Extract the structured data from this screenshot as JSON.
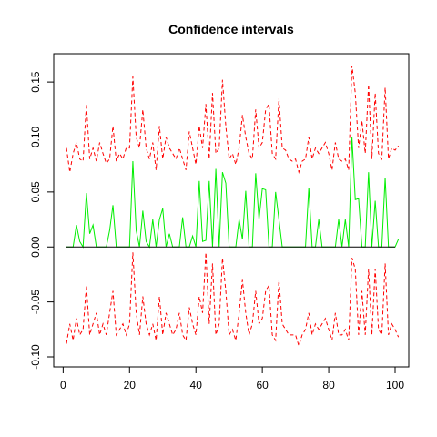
{
  "chart_data": {
    "type": "line",
    "title": "Confidence intervals",
    "xlabel": "",
    "ylabel": "",
    "xlim": [
      1,
      100
    ],
    "ylim": [
      -0.1,
      0.165
    ],
    "x_ticks": [
      0,
      20,
      40,
      60,
      80,
      100
    ],
    "y_ticks": [
      -0.1,
      -0.05,
      0.0,
      0.05,
      0.1,
      0.15
    ],
    "x_tick_labels": [
      "0",
      "20",
      "40",
      "60",
      "80",
      "100"
    ],
    "y_tick_labels": [
      "-0.10",
      "-0.05",
      "0.00",
      "0.05",
      "0.10",
      "0.15"
    ],
    "grid": false,
    "reference_line": {
      "y": 0,
      "color": "#000000"
    },
    "series": [
      {
        "color": "#ff0000",
        "dash": "dashed",
        "values": [
          0.09,
          0.068,
          0.085,
          0.095,
          0.08,
          0.078,
          0.13,
          0.08,
          0.09,
          0.078,
          0.095,
          0.085,
          0.076,
          0.08,
          0.11,
          0.078,
          0.085,
          0.08,
          0.09,
          0.09,
          0.155,
          0.1,
          0.09,
          0.125,
          0.09,
          0.08,
          0.095,
          0.07,
          0.11,
          0.08,
          0.1,
          0.09,
          0.085,
          0.08,
          0.09,
          0.08,
          0.07,
          0.105,
          0.09,
          0.075,
          0.11,
          0.09,
          0.13,
          0.08,
          0.14,
          0.085,
          0.09,
          0.152,
          0.11,
          0.08,
          0.085,
          0.075,
          0.09,
          0.12,
          0.1,
          0.085,
          0.08,
          0.125,
          0.09,
          0.095,
          0.125,
          0.13,
          0.085,
          0.08,
          0.135,
          0.09,
          0.088,
          0.08,
          0.078,
          0.08,
          0.068,
          0.078,
          0.08,
          0.1,
          0.08,
          0.09,
          0.085,
          0.09,
          0.095,
          0.085,
          0.07,
          0.095,
          0.08,
          0.078,
          0.08,
          0.07,
          0.165,
          0.14,
          0.09,
          0.115,
          0.085,
          0.148,
          0.08,
          0.14,
          0.085,
          0.08,
          0.145,
          0.08,
          0.09,
          0.088,
          0.092
        ]
      },
      {
        "color": "#ff0000",
        "dash": "dashed",
        "values": [
          -0.088,
          -0.07,
          -0.085,
          -0.065,
          -0.08,
          -0.075,
          -0.035,
          -0.08,
          -0.07,
          -0.06,
          -0.08,
          -0.07,
          -0.08,
          -0.06,
          -0.04,
          -0.08,
          -0.075,
          -0.07,
          -0.08,
          -0.07,
          -0.005,
          -0.06,
          -0.08,
          -0.045,
          -0.07,
          -0.08,
          -0.07,
          -0.085,
          -0.045,
          -0.08,
          -0.06,
          -0.07,
          -0.08,
          -0.075,
          -0.06,
          -0.08,
          -0.085,
          -0.055,
          -0.07,
          -0.08,
          -0.045,
          -0.06,
          -0.005,
          -0.07,
          -0.015,
          -0.08,
          -0.07,
          -0.01,
          -0.04,
          -0.08,
          -0.075,
          -0.085,
          -0.06,
          -0.03,
          -0.06,
          -0.08,
          -0.07,
          -0.04,
          -0.07,
          -0.065,
          -0.04,
          -0.035,
          -0.08,
          -0.085,
          -0.03,
          -0.07,
          -0.075,
          -0.08,
          -0.08,
          -0.08,
          -0.09,
          -0.08,
          -0.075,
          -0.06,
          -0.08,
          -0.07,
          -0.075,
          -0.07,
          -0.065,
          -0.075,
          -0.085,
          -0.06,
          -0.08,
          -0.08,
          -0.075,
          -0.085,
          -0.01,
          -0.02,
          -0.08,
          -0.04,
          -0.08,
          -0.02,
          -0.08,
          -0.02,
          -0.075,
          -0.08,
          -0.015,
          -0.08,
          -0.07,
          -0.075,
          -0.082
        ]
      },
      {
        "color": "#00ee00",
        "dash": "solid",
        "values": [
          0,
          0,
          0,
          0.02,
          0.005,
          0,
          0.049,
          0.012,
          0.02,
          0,
          0,
          0,
          0,
          0.015,
          0.038,
          0,
          0,
          0,
          0,
          0,
          0.078,
          0.015,
          0,
          0.033,
          0.005,
          0,
          0.025,
          0,
          0.025,
          0.035,
          0,
          0.012,
          0,
          0,
          0,
          0.027,
          0,
          0,
          0.01,
          0,
          0.06,
          0.005,
          0.006,
          0.06,
          0,
          0.071,
          0,
          0.068,
          0.058,
          0,
          0,
          0,
          0.025,
          0.007,
          0.051,
          0,
          0,
          0.067,
          0.025,
          0.053,
          0.052,
          0,
          0,
          0.05,
          0.025,
          0,
          0,
          0,
          0,
          0,
          0,
          0,
          0,
          0.054,
          0,
          0,
          0.025,
          0,
          0,
          0,
          0,
          0,
          0.025,
          0,
          0.025,
          0,
          0.1,
          0.043,
          0.044,
          0,
          0,
          0.068,
          0,
          0.042,
          0,
          0,
          0.063,
          0,
          0,
          0,
          0.007
        ]
      }
    ]
  }
}
